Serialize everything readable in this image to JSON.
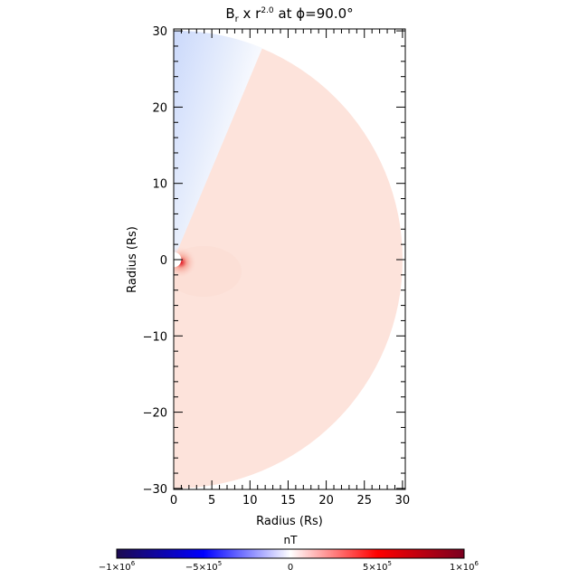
{
  "chart_data": {
    "type": "heatmap",
    "title": {
      "main": "B",
      "sub": "r",
      "mid": " x r",
      "sup": "2.0",
      "tail": " at ϕ=90.0°"
    },
    "xlabel": "Radius (Rs)",
    "ylabel": "Radius (Rs)",
    "xlim": [
      0,
      30.5
    ],
    "ylim": [
      -30.3,
      30.3
    ],
    "xticks": [
      "0",
      "5",
      "10",
      "15",
      "20",
      "25",
      "30"
    ],
    "xtick_values": [
      0,
      5,
      10,
      15,
      20,
      25,
      30
    ],
    "yticks": [
      "30",
      "20",
      "10",
      "0",
      "−10",
      "−20",
      "−30"
    ],
    "ytick_values": [
      30,
      20,
      10,
      0,
      -10,
      -20,
      -30
    ],
    "domain_radius": [
      1,
      30
    ],
    "colorbar": {
      "label": "nT",
      "range": [
        -1000000,
        1000000
      ],
      "ticks": [
        {
          "value": -1000000,
          "label": "−1×10",
          "exp": "6"
        },
        {
          "value": -500000,
          "label": "−5×10",
          "exp": "5"
        },
        {
          "value": 0,
          "label": "0",
          "exp": ""
        },
        {
          "value": 500000,
          "label": "5×10",
          "exp": "5"
        },
        {
          "value": 1000000,
          "label": "1×10",
          "exp": "6"
        }
      ],
      "colors": [
        "#1c0a50",
        "#0000ff",
        "#ffffff",
        "#ff0000",
        "#7a0020"
      ]
    },
    "regions": {
      "negative_wedge_color": "#cfdcfb",
      "positive_field_color": "#fde4dc",
      "near_sun_peak_color": "#e0141e"
    }
  }
}
